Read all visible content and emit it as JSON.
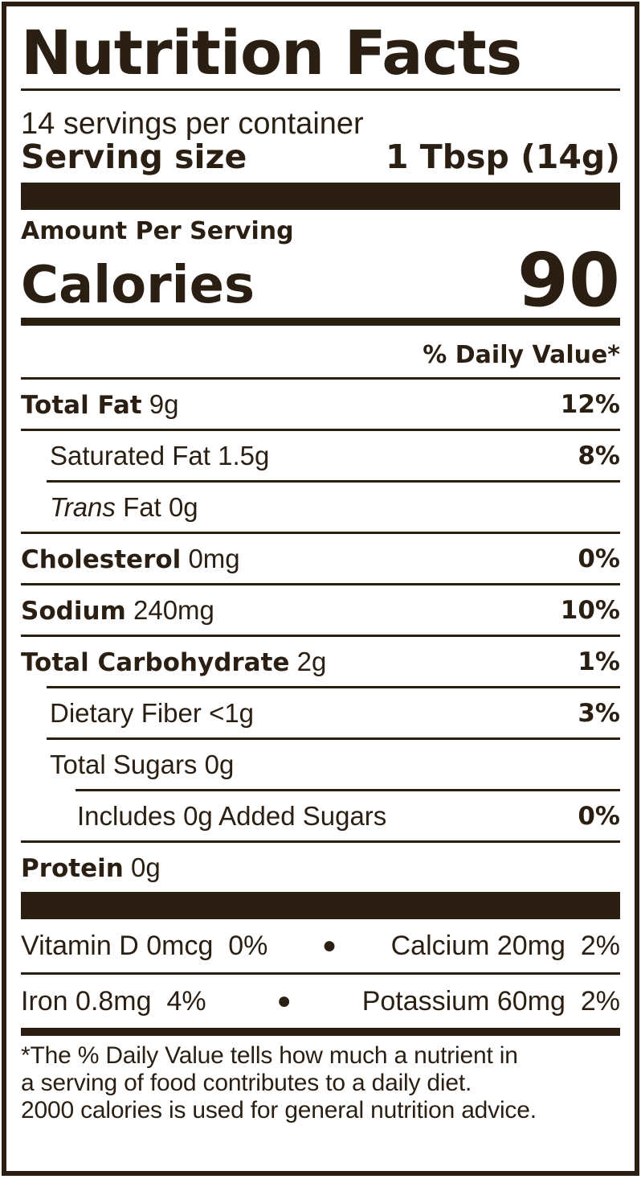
{
  "title": "Nutrition Facts",
  "servings_per_container": "14 servings per container",
  "serving_size": {
    "label": "Serving size",
    "value": "1 Tbsp (14g)"
  },
  "amount_per_serving": "Amount Per Serving",
  "calories": {
    "label": "Calories",
    "value": "90"
  },
  "daily_value_header": "% Daily Value*",
  "nutrients": {
    "total_fat": {
      "name": "Total Fat",
      "amount": "9g",
      "dv": "12%"
    },
    "saturated_fat": {
      "name": "Saturated Fat",
      "amount": "1.5g",
      "dv": "8%"
    },
    "trans_fat": {
      "name_italic": "Trans",
      "name": "Fat",
      "amount": "0g"
    },
    "cholesterol": {
      "name": "Cholesterol",
      "amount": "0mg",
      "dv": "0%"
    },
    "sodium": {
      "name": "Sodium",
      "amount": "240mg",
      "dv": "10%"
    },
    "total_carbohydrate": {
      "name": "Total Carbohydrate",
      "amount": "2g",
      "dv": "1%"
    },
    "dietary_fiber": {
      "name": "Dietary Fiber",
      "amount": "<1g",
      "dv": "3%"
    },
    "total_sugars": {
      "name": "Total Sugars",
      "amount": "0g"
    },
    "added_sugars": {
      "name": "Includes 0g Added Sugars",
      "dv": "0%"
    },
    "protein": {
      "name": "Protein",
      "amount": "0g"
    }
  },
  "vitamins": {
    "vitamin_d": {
      "name": "Vitamin D",
      "amount": "0mcg",
      "dv": "0%"
    },
    "calcium": {
      "name": "Calcium",
      "amount": "20mg",
      "dv": "2%"
    },
    "iron": {
      "name": "Iron",
      "amount": "0.8mg",
      "dv": "4%"
    },
    "potassium": {
      "name": "Potassium",
      "amount": "60mg",
      "dv": "2%"
    },
    "bullet": "●"
  },
  "footnote": {
    "line1": "*The % Daily Value tells how much a nutrient in",
    "line2": "a serving of food contributes to a daily diet.",
    "line3": "2000 calories is used for general nutrition advice."
  },
  "colors": {
    "ink": "#2a1f12",
    "background": "#ffffff"
  }
}
